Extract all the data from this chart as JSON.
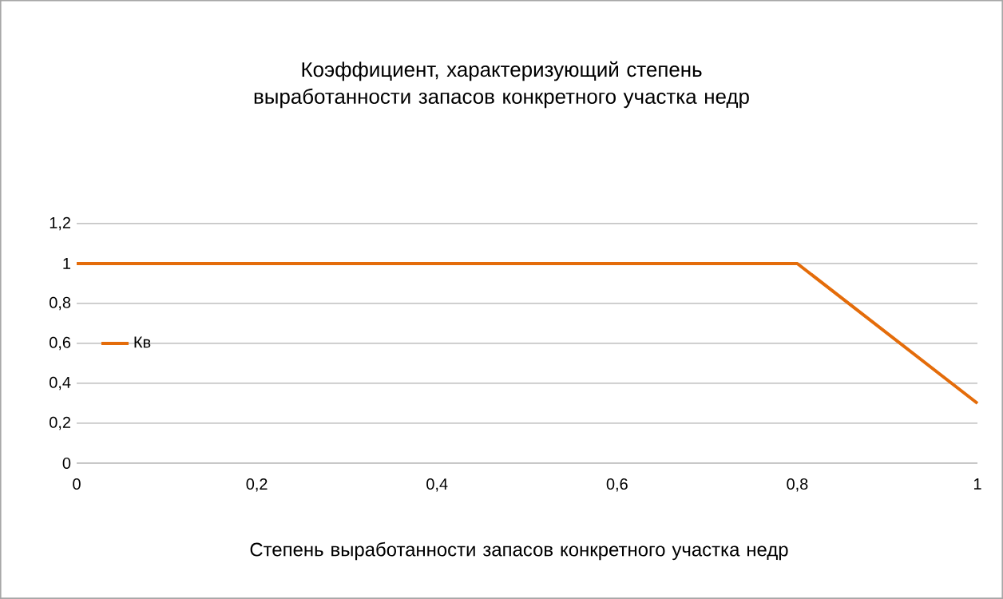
{
  "chart_data": {
    "type": "line",
    "title": "Коэффициент, характеризующий степень выработанности запасов конкретного участка недр",
    "xlabel": "Степень выработанности запасов конкретного участка недр",
    "x": [
      0,
      0.8,
      1
    ],
    "series": [
      {
        "name": "Кв",
        "color": "#e46c0a",
        "values": [
          1,
          1,
          0.3
        ]
      }
    ],
    "xlim": [
      0,
      1
    ],
    "ylim": [
      0,
      1.2
    ],
    "xticks": [
      0,
      {
        "value": 0.2,
        "label": "0,2"
      },
      {
        "value": 0.4,
        "label": "0,4"
      },
      {
        "value": 0.6,
        "label": "0,6"
      },
      {
        "value": 0.8,
        "label": "0,8"
      },
      1
    ],
    "yticks": [
      0,
      {
        "value": 0.2,
        "label": "0,2"
      },
      {
        "value": 0.4,
        "label": "0,4"
      },
      {
        "value": 0.6,
        "label": "0,6"
      },
      {
        "value": 0.8,
        "label": "0,8"
      },
      1,
      {
        "value": 1.2,
        "label": "1,2"
      }
    ],
    "grid": "y",
    "legend": "left",
    "marker": "none",
    "line_style": "solid"
  }
}
